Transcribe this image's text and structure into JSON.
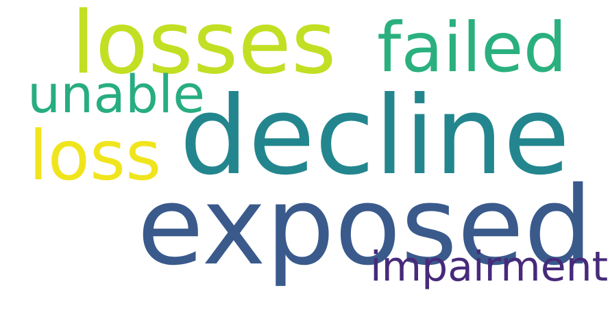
{
  "words": [
    {
      "id": "losses",
      "text": "losses",
      "color": "#c2df23"
    },
    {
      "id": "failed",
      "text": "failed",
      "color": "#2ab07f"
    },
    {
      "id": "unable",
      "text": "unable",
      "color": "#27ad81"
    },
    {
      "id": "decline",
      "text": "decline",
      "color": "#23868e"
    },
    {
      "id": "loss",
      "text": "loss",
      "color": "#f0e51d"
    },
    {
      "id": "exposed",
      "text": "exposed",
      "color": "#3a5a8c"
    },
    {
      "id": "impairment",
      "text": "impairment",
      "color": "#472a7a"
    }
  ]
}
